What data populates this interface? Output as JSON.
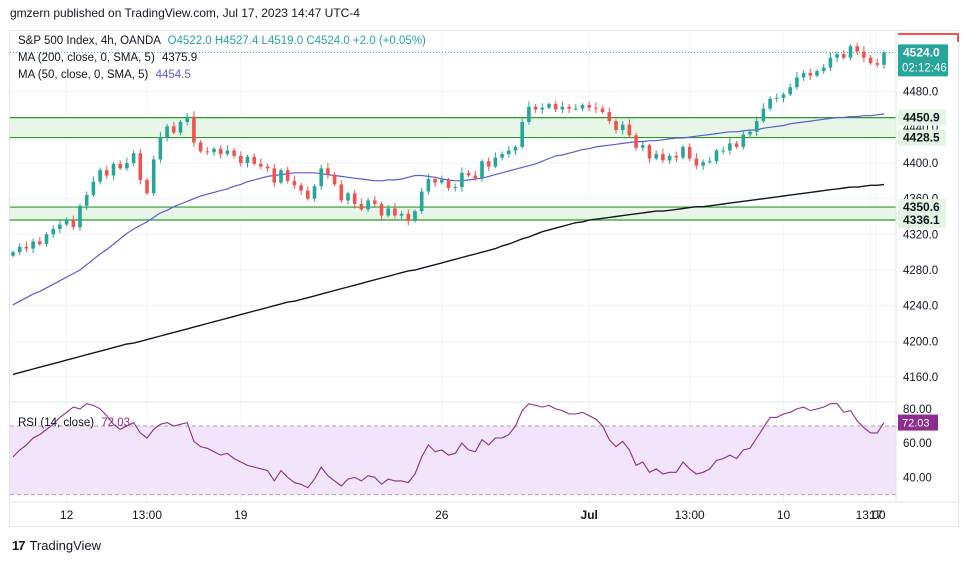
{
  "header": {
    "published": "gmzern published on TradingView.com, Jul 17, 2023 14:47 UTC-4"
  },
  "legend": {
    "symbol": "S&P 500 Index, 4h, OANDA",
    "ohlc": "O4522.0  H4527.4  L4519.0  C4524.0  +2.0 (+0.05%)",
    "ma200_label": "MA (200, close, 0, SMA, 5)",
    "ma200_value": "4375.9",
    "ma50_label": "MA (50, close, 0, SMA, 5)",
    "ma50_value": "4454.5",
    "rsi_label": "RSI (14, close)",
    "rsi_value": "72.03"
  },
  "price_tags": {
    "last": "4524.0",
    "countdown": "02:12:46",
    "zone1_top": "4450.9",
    "zone1_bottom": "4428.5",
    "zone2_top": "4350.6",
    "zone2_bottom": "4336.1"
  },
  "footer": {
    "brand": "TradingView",
    "logo": "17"
  },
  "colors": {
    "up": "#26a69a",
    "down": "#ef5350",
    "ma50": "#5b5bd6",
    "ma200": "#131722",
    "zone_fill": "#e3f4e3",
    "zone_line": "#2e9a2e",
    "rsi_line": "#8e2d8e",
    "rsi_fill": "#f1e4fb"
  },
  "chart_data": [
    {
      "type": "candlestick",
      "title": "S&P 500 Index, 4h, OANDA",
      "y_ticks": [
        4160,
        4200,
        4240,
        4280,
        4320,
        4360,
        4400,
        4440,
        4480
      ],
      "ylim": [
        4132,
        4548
      ],
      "x_ticks": [
        "12",
        "13:00",
        "19",
        "26",
        "Jul",
        "13:00",
        "10",
        "13:00",
        "17"
      ],
      "close": [
        4300,
        4306,
        4304,
        4312,
        4309,
        4320,
        4326,
        4331,
        4336,
        4328,
        4352,
        4364,
        4379,
        4392,
        4386,
        4399,
        4394,
        4400,
        4411,
        4381,
        4366,
        4404,
        4429,
        4441,
        4434,
        4446,
        4452,
        4423,
        4413,
        4412,
        4416,
        4410,
        4414,
        4408,
        4400,
        4407,
        4399,
        4396,
        4394,
        4378,
        4392,
        4380,
        4375,
        4369,
        4360,
        4374,
        4394,
        4387,
        4376,
        4358,
        4366,
        4354,
        4348,
        4358,
        4354,
        4341,
        4349,
        4341,
        4343,
        4335,
        4346,
        4368,
        4382,
        4378,
        4381,
        4372,
        4373,
        4389,
        4386,
        4383,
        4402,
        4396,
        4406,
        4410,
        4414,
        4418,
        4446,
        4463,
        4460,
        4462,
        4466,
        4460,
        4463,
        4461,
        4461,
        4465,
        4462,
        4461,
        4457,
        4447,
        4437,
        4443,
        4431,
        4417,
        4420,
        4405,
        4410,
        4403,
        4408,
        4406,
        4418,
        4405,
        4397,
        4401,
        4402,
        4414,
        4414,
        4422,
        4418,
        4432,
        4435,
        4447,
        4461,
        4472,
        4473,
        4477,
        4485,
        4496,
        4501,
        4498,
        4503,
        4507,
        4518,
        4522,
        4518,
        4531,
        4525,
        4518,
        4512,
        4510,
        4524
      ],
      "ma50": [
        4241,
        4245,
        4249,
        4253,
        4256,
        4260,
        4264,
        4268,
        4272,
        4276,
        4280,
        4286,
        4292,
        4298,
        4303,
        4309,
        4315,
        4321,
        4326,
        4330,
        4334,
        4339,
        4344,
        4347,
        4351,
        4354,
        4357,
        4360,
        4363,
        4365,
        4367,
        4369,
        4371,
        4374,
        4376,
        4379,
        4381,
        4383,
        4385,
        4386,
        4387,
        4388,
        4389,
        4389,
        4389,
        4389,
        4388,
        4387,
        4386,
        4385,
        4384,
        4383,
        4382,
        4381,
        4380,
        4380,
        4381,
        4381,
        4382,
        4384,
        4386,
        4386,
        4385,
        4384,
        4382,
        4381,
        4380,
        4380,
        4381,
        4382,
        4383,
        4385,
        4387,
        4389,
        4391,
        4393,
        4395,
        4397,
        4399,
        4402,
        4405,
        4408,
        4409,
        4411,
        4413,
        4415,
        4416,
        4418,
        4419,
        4420,
        4421,
        4422,
        4423,
        4424,
        4424,
        4425,
        4425,
        4426,
        4427,
        4428,
        4428,
        4429,
        4430,
        4431,
        4432,
        4433,
        4434,
        4435,
        4435,
        4436,
        4437,
        4437,
        4439,
        4440,
        4441,
        4442,
        4444,
        4445,
        4446,
        4447,
        4448,
        4449,
        4450,
        4451,
        4451,
        4452,
        4452,
        4453,
        4453,
        4454,
        4455
      ],
      "ma200": [
        4163,
        4165,
        4167,
        4169,
        4171,
        4173,
        4175,
        4177,
        4179,
        4181,
        4183,
        4185,
        4187,
        4189,
        4191,
        4193,
        4195,
        4197,
        4198,
        4200,
        4202,
        4204,
        4206,
        4208,
        4210,
        4212,
        4214,
        4216,
        4218,
        4220,
        4222,
        4224,
        4226,
        4228,
        4230,
        4232,
        4234,
        4236,
        4238,
        4240,
        4242,
        4244,
        4245,
        4247,
        4249,
        4251,
        4253,
        4255,
        4257,
        4259,
        4261,
        4263,
        4265,
        4267,
        4269,
        4271,
        4273,
        4275,
        4277,
        4279,
        4280,
        4282,
        4284,
        4286,
        4288,
        4290,
        4292,
        4294,
        4296,
        4298,
        4300,
        4302,
        4304,
        4307,
        4309,
        4312,
        4315,
        4317,
        4320,
        4323,
        4325,
        4327,
        4329,
        4331,
        4333,
        4334,
        4336,
        4337,
        4338,
        4339,
        4340,
        4341,
        4342,
        4343,
        4344,
        4345,
        4346,
        4346,
        4347,
        4348,
        4349,
        4350,
        4351,
        4351,
        4352,
        4353,
        4354,
        4355,
        4356,
        4357,
        4358,
        4359,
        4360,
        4361,
        4362,
        4363,
        4364,
        4365,
        4366,
        4367,
        4368,
        4369,
        4370,
        4371,
        4372,
        4373,
        4373,
        4374,
        4375,
        4375,
        4376
      ],
      "zones": [
        [
          4428.5,
          4450.9
        ],
        [
          4336.1,
          4350.6
        ]
      ]
    },
    {
      "type": "line",
      "title": "RSI (14, close)",
      "y_ticks": [
        40,
        60,
        80
      ],
      "ylim": [
        28,
        84
      ],
      "bands": [
        30,
        70
      ],
      "values": [
        52,
        56,
        59,
        63,
        65,
        68,
        71,
        75,
        78,
        81,
        80,
        83,
        82,
        80,
        76,
        71,
        68,
        70,
        72,
        66,
        63,
        68,
        71,
        72,
        70,
        71,
        72,
        61,
        58,
        57,
        55,
        53,
        54,
        51,
        49,
        47,
        46,
        45,
        44,
        38,
        44,
        40,
        37,
        36,
        34,
        39,
        46,
        41,
        38,
        35,
        39,
        40,
        38,
        41,
        40,
        36,
        39,
        38,
        38,
        37,
        42,
        52,
        59,
        55,
        56,
        53,
        54,
        60,
        56,
        55,
        62,
        59,
        63,
        63,
        65,
        70,
        79,
        83,
        82,
        81,
        82,
        80,
        79,
        77,
        77,
        78,
        76,
        74,
        70,
        62,
        58,
        61,
        56,
        47,
        49,
        43,
        45,
        42,
        43,
        43,
        49,
        45,
        42,
        43,
        45,
        50,
        51,
        53,
        51,
        56,
        57,
        63,
        69,
        75,
        75,
        77,
        78,
        80,
        81,
        79,
        80,
        81,
        83,
        83,
        78,
        79,
        73,
        69,
        66,
        66,
        72
      ]
    }
  ]
}
